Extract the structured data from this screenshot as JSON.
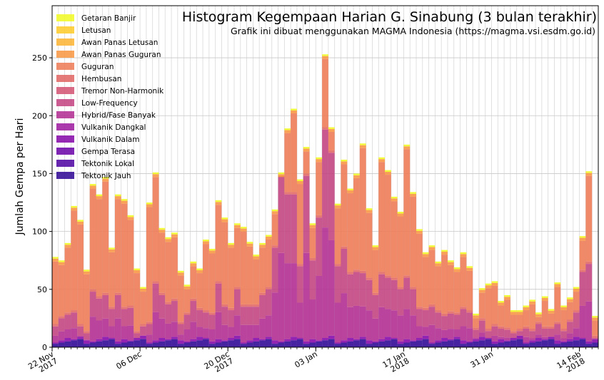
{
  "chart_data": {
    "type": "bar",
    "title": "Histogram Kegempaan Harian G. Sinabung (3 bulan terakhir)",
    "subtitle": "Grafik ini dibuat menggunakan MAGMA Indonesia (https://magma.vsi.esdm.go.id)",
    "ylabel": "Jumlah Gempa per Hari",
    "xlabel": "",
    "ylim": [
      0,
      295
    ],
    "yticks": [
      0,
      50,
      100,
      150,
      200,
      250
    ],
    "grid": true,
    "stacked": true,
    "legend_position": "top-left",
    "x_start_date": "2017-11-22",
    "xtick_labels": [
      {
        "label": "22 Nov\n2017",
        "date": "2017-11-22"
      },
      {
        "label": "06 Dec",
        "date": "2017-12-06"
      },
      {
        "label": "20 Dec\n2017",
        "date": "2017-12-20"
      },
      {
        "label": "03 Jan",
        "date": "2018-01-03"
      },
      {
        "label": "17 Jan\n2018",
        "date": "2018-01-17"
      },
      {
        "label": "31 Jan",
        "date": "2018-01-31"
      },
      {
        "label": "14 Feb\n2018",
        "date": "2018-02-14"
      }
    ],
    "series": [
      {
        "name": "Getaran Banjir",
        "color": "#f0f921"
      },
      {
        "name": "Letusan",
        "color": "#fdca26"
      },
      {
        "name": "Awan Panas Letusan",
        "color": "#fbb32f"
      },
      {
        "name": "Awan Panas Guguran",
        "color": "#f89540"
      },
      {
        "name": "Guguran",
        "color": "#ed7953"
      },
      {
        "name": "Hembusan",
        "color": "#e16462"
      },
      {
        "name": "Tremor Non-Harmonik",
        "color": "#d35171"
      },
      {
        "name": "Low-Frequency",
        "color": "#c2417f"
      },
      {
        "name": "Hybrid/Fase Banyak",
        "color": "#b12a90"
      },
      {
        "name": "Vulkanik Dangkal",
        "color": "#9c179e"
      },
      {
        "name": "Vulkanik Dalam",
        "color": "#8405a7"
      },
      {
        "name": "Gempa Terasa",
        "color": "#6a00a8"
      },
      {
        "name": "Tektonik Lokal",
        "color": "#4c02a1"
      },
      {
        "name": "Tektonik Jauh",
        "color": "#2c0594"
      }
    ],
    "totals": [
      78,
      75,
      90,
      122,
      110,
      67,
      141,
      132,
      147,
      86,
      132,
      128,
      114,
      68,
      52,
      125,
      151,
      103,
      95,
      99,
      66,
      54,
      74,
      68,
      93,
      85,
      127,
      112,
      90,
      107,
      104,
      91,
      80,
      90,
      97,
      119,
      151,
      189,
      206,
      145,
      173,
      107,
      164,
      253,
      190,
      124,
      162,
      137,
      150,
      176,
      120,
      88,
      164,
      153,
      130,
      117,
      175,
      134,
      102,
      82,
      88,
      74,
      84,
      75,
      69,
      82,
      70,
      29,
      51,
      55,
      57,
      40,
      45,
      32,
      32,
      36,
      41,
      30,
      44,
      33,
      56,
      36,
      43,
      52,
      96,
      152,
      27
    ],
    "dark_low": [
      18,
      25,
      28,
      30,
      18,
      12,
      48,
      42,
      45,
      33,
      45,
      33,
      34,
      12,
      18,
      20,
      55,
      45,
      37,
      40,
      20,
      28,
      40,
      32,
      30,
      28,
      55,
      35,
      32,
      50,
      35,
      35,
      35,
      45,
      50,
      86,
      148,
      132,
      132,
      70,
      148,
      75,
      112,
      188,
      168,
      70,
      85,
      63,
      65,
      64,
      58,
      45,
      63,
      60,
      58,
      50,
      60,
      50,
      33,
      32,
      35,
      30,
      27,
      29,
      28,
      33,
      30,
      15,
      23,
      14,
      18,
      16,
      15,
      12,
      14,
      16,
      14,
      20,
      16,
      16,
      20,
      14,
      22,
      30,
      65,
      72,
      8
    ]
  }
}
